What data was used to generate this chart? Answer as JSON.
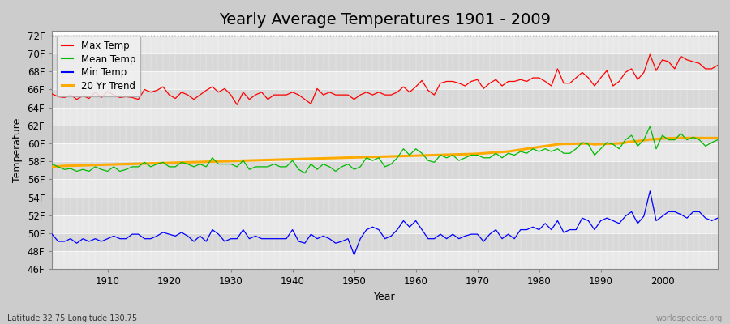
{
  "title": "Yearly Average Temperatures 1901 - 2009",
  "xlabel": "Year",
  "ylabel": "Temperature",
  "bottom_left": "Latitude 32.75 Longitude 130.75",
  "bottom_right": "worldspecies.org",
  "years": [
    1901,
    1902,
    1903,
    1904,
    1905,
    1906,
    1907,
    1908,
    1909,
    1910,
    1911,
    1912,
    1913,
    1914,
    1915,
    1916,
    1917,
    1918,
    1919,
    1920,
    1921,
    1922,
    1923,
    1924,
    1925,
    1926,
    1927,
    1928,
    1929,
    1930,
    1931,
    1932,
    1933,
    1934,
    1935,
    1936,
    1937,
    1938,
    1939,
    1940,
    1941,
    1942,
    1943,
    1944,
    1945,
    1946,
    1947,
    1948,
    1949,
    1950,
    1951,
    1952,
    1953,
    1954,
    1955,
    1956,
    1957,
    1958,
    1959,
    1960,
    1961,
    1962,
    1963,
    1964,
    1965,
    1966,
    1967,
    1968,
    1969,
    1970,
    1971,
    1972,
    1973,
    1974,
    1975,
    1976,
    1977,
    1978,
    1979,
    1980,
    1981,
    1982,
    1983,
    1984,
    1985,
    1986,
    1987,
    1988,
    1989,
    1990,
    1991,
    1992,
    1993,
    1994,
    1995,
    1996,
    1997,
    1998,
    1999,
    2000,
    2001,
    2002,
    2003,
    2004,
    2005,
    2006,
    2007,
    2008,
    2009
  ],
  "max_temp": [
    65.5,
    65.2,
    65.1,
    65.4,
    64.9,
    65.3,
    65.0,
    65.7,
    65.1,
    65.8,
    65.4,
    65.1,
    65.2,
    65.1,
    64.9,
    66.0,
    65.7,
    65.9,
    66.3,
    65.4,
    65.0,
    65.7,
    65.4,
    64.9,
    65.4,
    65.9,
    66.3,
    65.7,
    66.1,
    65.4,
    64.3,
    65.7,
    64.9,
    65.4,
    65.7,
    64.9,
    65.4,
    65.4,
    65.4,
    65.7,
    65.4,
    64.9,
    64.4,
    66.1,
    65.4,
    65.7,
    65.4,
    65.4,
    65.4,
    64.9,
    65.4,
    65.7,
    65.4,
    65.7,
    65.4,
    65.4,
    65.7,
    66.3,
    65.7,
    66.3,
    67.0,
    65.9,
    65.4,
    66.7,
    66.9,
    66.9,
    66.7,
    66.4,
    66.9,
    67.1,
    66.1,
    66.7,
    67.1,
    66.4,
    66.9,
    66.9,
    67.1,
    66.9,
    67.3,
    67.3,
    66.9,
    66.4,
    68.3,
    66.7,
    66.7,
    67.3,
    67.9,
    67.3,
    66.4,
    67.3,
    68.1,
    66.4,
    66.9,
    67.9,
    68.3,
    67.1,
    67.9,
    69.9,
    68.1,
    69.3,
    69.1,
    68.3,
    69.7,
    69.3,
    69.1,
    68.9,
    68.3,
    68.3,
    68.7
  ],
  "mean_temp": [
    57.7,
    57.4,
    57.1,
    57.2,
    56.9,
    57.1,
    56.9,
    57.4,
    57.1,
    56.9,
    57.4,
    56.9,
    57.1,
    57.4,
    57.4,
    57.9,
    57.4,
    57.7,
    57.9,
    57.4,
    57.4,
    57.9,
    57.7,
    57.4,
    57.7,
    57.4,
    58.4,
    57.7,
    57.7,
    57.7,
    57.4,
    58.1,
    57.1,
    57.4,
    57.4,
    57.4,
    57.7,
    57.4,
    57.4,
    58.1,
    57.1,
    56.7,
    57.7,
    57.1,
    57.7,
    57.4,
    56.9,
    57.4,
    57.7,
    57.1,
    57.4,
    58.4,
    58.1,
    58.4,
    57.4,
    57.7,
    58.4,
    59.4,
    58.7,
    59.4,
    58.9,
    58.1,
    57.9,
    58.7,
    58.4,
    58.7,
    58.1,
    58.4,
    58.7,
    58.7,
    58.4,
    58.4,
    58.9,
    58.4,
    58.9,
    58.7,
    59.1,
    58.9,
    59.4,
    59.1,
    59.4,
    59.1,
    59.4,
    58.9,
    58.9,
    59.4,
    60.1,
    59.9,
    58.7,
    59.4,
    60.1,
    59.9,
    59.4,
    60.4,
    60.9,
    59.7,
    60.4,
    61.9,
    59.4,
    60.9,
    60.4,
    60.4,
    61.1,
    60.4,
    60.7,
    60.4,
    59.7,
    60.1,
    60.4
  ],
  "min_temp": [
    49.9,
    49.1,
    49.1,
    49.4,
    48.9,
    49.4,
    49.1,
    49.4,
    49.1,
    49.4,
    49.7,
    49.4,
    49.4,
    49.9,
    49.9,
    49.4,
    49.4,
    49.7,
    50.1,
    49.9,
    49.7,
    50.1,
    49.7,
    49.1,
    49.7,
    49.1,
    50.4,
    49.9,
    49.1,
    49.4,
    49.4,
    50.4,
    49.4,
    49.7,
    49.4,
    49.4,
    49.4,
    49.4,
    49.4,
    50.4,
    49.1,
    48.9,
    49.9,
    49.4,
    49.7,
    49.4,
    48.9,
    49.1,
    49.4,
    47.6,
    49.4,
    50.4,
    50.7,
    50.4,
    49.4,
    49.7,
    50.4,
    51.4,
    50.7,
    51.4,
    50.4,
    49.4,
    49.4,
    49.9,
    49.4,
    49.9,
    49.4,
    49.7,
    49.9,
    49.9,
    49.1,
    49.9,
    50.4,
    49.4,
    49.9,
    49.4,
    50.4,
    50.4,
    50.7,
    50.4,
    51.1,
    50.4,
    51.4,
    50.1,
    50.4,
    50.4,
    51.7,
    51.4,
    50.4,
    51.4,
    51.7,
    51.4,
    51.1,
    51.9,
    52.4,
    51.1,
    51.9,
    54.7,
    51.4,
    51.9,
    52.4,
    52.4,
    52.1,
    51.7,
    52.4,
    52.4,
    51.7,
    51.4,
    51.7
  ],
  "trend": [
    57.4,
    57.45,
    57.5,
    57.52,
    57.54,
    57.56,
    57.58,
    57.6,
    57.62,
    57.64,
    57.66,
    57.68,
    57.7,
    57.72,
    57.74,
    57.76,
    57.78,
    57.8,
    57.82,
    57.84,
    57.86,
    57.88,
    57.9,
    57.92,
    57.94,
    57.96,
    57.98,
    58.0,
    58.02,
    58.04,
    58.06,
    58.08,
    58.1,
    58.12,
    58.14,
    58.16,
    58.18,
    58.2,
    58.22,
    58.24,
    58.26,
    58.28,
    58.3,
    58.32,
    58.34,
    58.36,
    58.38,
    58.4,
    58.42,
    58.44,
    58.46,
    58.48,
    58.5,
    58.52,
    58.54,
    58.56,
    58.58,
    58.6,
    58.62,
    58.64,
    58.66,
    58.68,
    58.7,
    58.72,
    58.74,
    58.76,
    58.78,
    58.8,
    58.82,
    58.85,
    58.9,
    58.95,
    59.0,
    59.05,
    59.1,
    59.2,
    59.3,
    59.4,
    59.5,
    59.6,
    59.7,
    59.8,
    59.9,
    59.95,
    59.95,
    59.97,
    59.98,
    59.99,
    59.9,
    59.92,
    59.95,
    59.97,
    60.0,
    60.1,
    60.2,
    60.25,
    60.35,
    60.45,
    60.48,
    60.55,
    60.58,
    60.6,
    60.62,
    60.6,
    60.62,
    60.6,
    60.6,
    60.6,
    60.6
  ],
  "ylim": [
    46,
    72.5
  ],
  "yticks": [
    46,
    48,
    50,
    52,
    54,
    56,
    58,
    60,
    62,
    64,
    66,
    68,
    70,
    72
  ],
  "ytick_labels": [
    "46F",
    "48F",
    "50F",
    "52F",
    "54F",
    "56F",
    "58F",
    "60F",
    "62F",
    "64F",
    "66F",
    "68F",
    "70F",
    "72F"
  ],
  "band_colors": [
    "#e8e8e8",
    "#d8d8d8"
  ],
  "xlim_left": 1901,
  "xlim_right": 2009,
  "xtick_positions": [
    1910,
    1920,
    1930,
    1940,
    1950,
    1960,
    1970,
    1980,
    1990,
    2000
  ],
  "xtick_labels": [
    "1910",
    "1920",
    "1930",
    "1940",
    "1950",
    "1960",
    "1970",
    "1980",
    "1990",
    "2000"
  ],
  "bg_color": "#cccccc",
  "plot_bg_color": "#e0e0e0",
  "max_color": "#ff0000",
  "mean_color": "#00bb00",
  "min_color": "#0000ff",
  "trend_color": "#ffaa00",
  "hline_y": 72,
  "title_fontsize": 14,
  "label_fontsize": 9,
  "tick_fontsize": 8.5,
  "legend_fontsize": 8.5
}
